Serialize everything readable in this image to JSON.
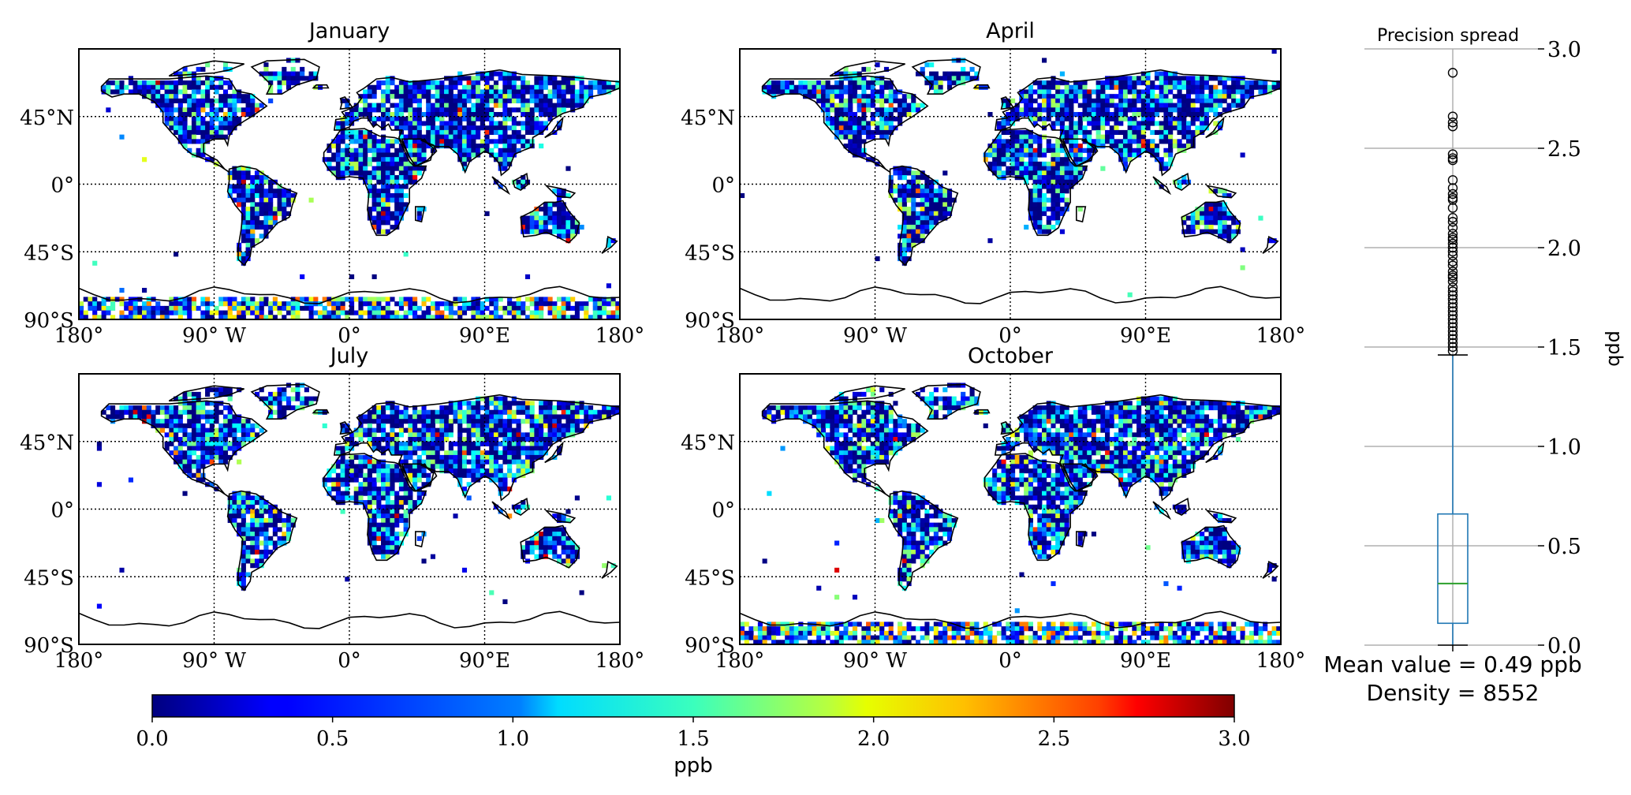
{
  "maps": {
    "panels": [
      {
        "title": "January",
        "density": 0.3,
        "antarctic": 1.0,
        "seed": 11
      },
      {
        "title": "April",
        "density": 0.45,
        "antarctic": 0.0,
        "seed": 23
      },
      {
        "title": "July",
        "density": 0.45,
        "antarctic": 0.0,
        "seed": 37
      },
      {
        "title": "October",
        "density": 0.38,
        "antarctic": 1.0,
        "seed": 51
      }
    ],
    "x_ticks": [
      {
        "value": -180,
        "label": "180°"
      },
      {
        "value": -90,
        "label": "90° W"
      },
      {
        "value": 0,
        "label": "0°"
      },
      {
        "value": 90,
        "label": "90°E"
      },
      {
        "value": 180,
        "label": "180°"
      }
    ],
    "y_ticks": [
      {
        "value": 45,
        "label": "45°N"
      },
      {
        "value": 0,
        "label": "0°"
      },
      {
        "value": -45,
        "label": "45°S"
      },
      {
        "value": -90,
        "label": "90°S"
      }
    ],
    "lon_range": [
      -180,
      180
    ],
    "lat_range": [
      -90,
      90
    ]
  },
  "colorbar": {
    "colormap": "jet",
    "range": [
      0.0,
      3.0
    ],
    "ticks": [
      "0.0",
      "0.5",
      "1.0",
      "1.5",
      "2.0",
      "2.5",
      "3.0"
    ],
    "label": "ppb"
  },
  "chart_data": {
    "type": "box",
    "title": "Precision spread",
    "ylabel": "ppb",
    "ylim": [
      0.0,
      3.0
    ],
    "y_ticks": [
      "0.0",
      "0.5",
      "1.0",
      "1.5",
      "2.0",
      "2.5",
      "3.0"
    ],
    "grid": true,
    "box": {
      "q1": 0.11,
      "median": 0.31,
      "q3": 0.66,
      "whisker_low": 0.0,
      "whisker_high": 1.46
    },
    "outliers": [
      2.88,
      2.66,
      2.63,
      2.61,
      2.47,
      2.45,
      2.44,
      2.34,
      2.3,
      2.27,
      2.25,
      2.24,
      2.2,
      2.15,
      2.13,
      2.1,
      2.07,
      2.05,
      2.04,
      2.02,
      2.0,
      1.98,
      1.96,
      1.93,
      1.91,
      1.88,
      1.86,
      1.85,
      1.83,
      1.8,
      1.78,
      1.76,
      1.74,
      1.72,
      1.7,
      1.68,
      1.66,
      1.64,
      1.62,
      1.6,
      1.58,
      1.56,
      1.54,
      1.52,
      1.5,
      1.48
    ],
    "stats": {
      "mean_text": "Mean value = 0.49 ppb",
      "density_text": "Density = 8552"
    },
    "colors": {
      "box": "#1f77b4",
      "median": "#2ca02c",
      "grid": "#b0b0b0"
    }
  }
}
